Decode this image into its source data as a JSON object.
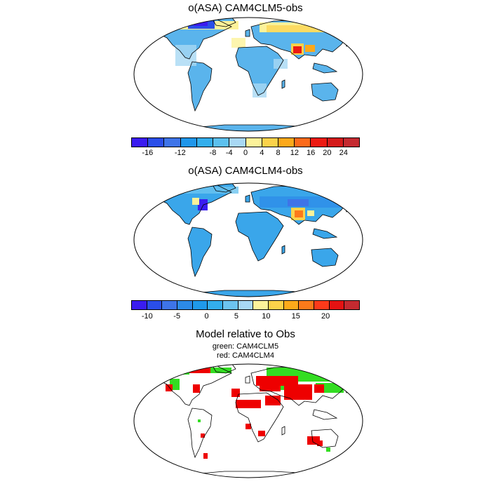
{
  "panels": [
    {
      "id": "p1",
      "title": "o(ASA) CAM4CLM5-obs",
      "legend": {
        "colors": [
          "#3a1cf0",
          "#2a4ee8",
          "#3e74e8",
          "#1f96ea",
          "#33aeec",
          "#5cc0ee",
          "#a8d8f4",
          "#fcf29a",
          "#fcd24a",
          "#fca81a",
          "#fc6a1a",
          "#ec1a12",
          "#d41a1a",
          "#c42a30"
        ],
        "tick_labels": [
          "-16",
          "-12",
          "-8",
          "-4",
          "0",
          "4",
          "8",
          "12",
          "16",
          "20",
          "24"
        ],
        "tick_after_box": [
          1,
          3,
          5,
          6,
          7,
          8,
          9,
          10,
          11,
          12,
          13
        ]
      }
    },
    {
      "id": "p2",
      "title": "o(ASA) CAM4CLM4-obs",
      "legend": {
        "colors": [
          "#3a1cf0",
          "#2a4ee8",
          "#3e74e8",
          "#2c8ae8",
          "#1f9aea",
          "#33aeec",
          "#6cc4f0",
          "#a8d8f4",
          "#fcf29a",
          "#fcd24a",
          "#fcaa1a",
          "#fc7a1a",
          "#fc3a1a",
          "#e41212",
          "#c42a30"
        ],
        "tick_labels": [
          "-10",
          "-5",
          "0",
          "5",
          "10",
          "15",
          "20"
        ],
        "tick_positions_fraction": [
          0.07,
          0.2,
          0.33,
          0.46,
          0.59,
          0.72,
          0.85
        ]
      }
    },
    {
      "id": "p3",
      "title": "Model relative to Obs",
      "subtitles": [
        "green: CAM4CLM5",
        "red: CAM4CLM4"
      ]
    }
  ],
  "colors": {
    "ocean": "#ffffff",
    "coast": "#000000",
    "land_p1": "#5ab4ec",
    "land_p2": "#3aa6ea",
    "green": "#33dd22",
    "red": "#ee0000"
  }
}
